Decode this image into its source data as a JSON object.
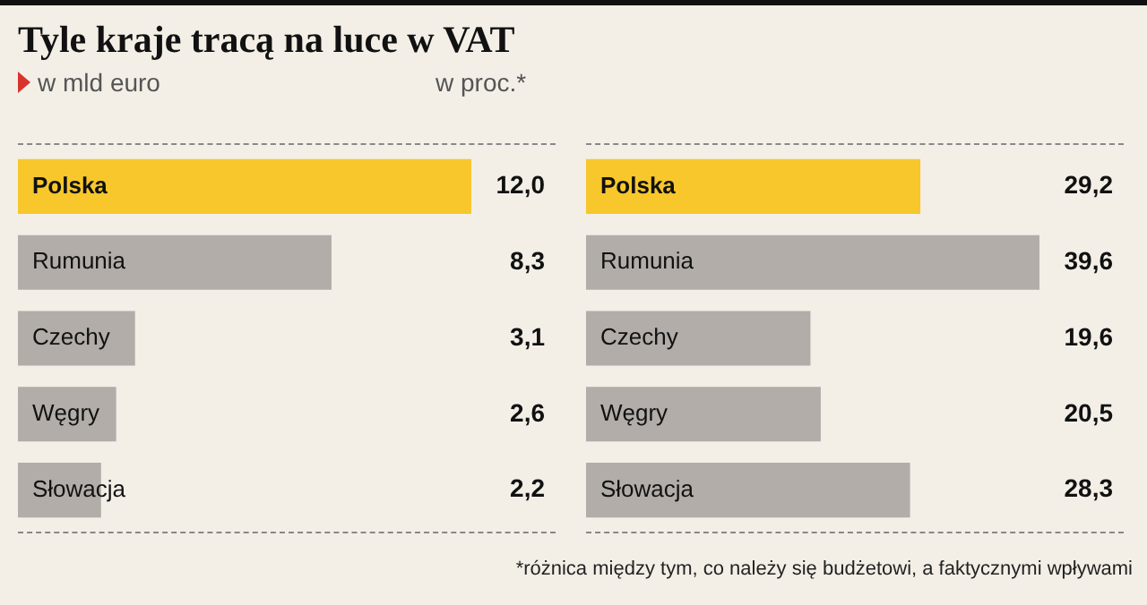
{
  "chart_data": [
    {
      "type": "bar",
      "orientation": "horizontal",
      "title": "Tyle kraje tracą na luce w VAT",
      "subtitle": "w mld euro",
      "categories": [
        "Polska",
        "Rumunia",
        "Czechy",
        "Węgry",
        "Słowacja"
      ],
      "values": [
        12.0,
        8.3,
        3.1,
        2.6,
        2.2
      ],
      "value_labels": [
        "12,0",
        "8,3",
        "3,1",
        "2,6",
        "2,2"
      ],
      "colors": [
        "#f7c72c",
        "#b2ada8",
        "#b2ada8",
        "#b2ada8",
        "#b2ada8"
      ]
    },
    {
      "type": "bar",
      "orientation": "horizontal",
      "subtitle": "w proc.*",
      "categories": [
        "Polska",
        "Rumunia",
        "Czechy",
        "Węgry",
        "Słowacja"
      ],
      "values": [
        29.2,
        39.6,
        19.6,
        20.5,
        28.3
      ],
      "value_labels": [
        "29,2",
        "39,6",
        "19,6",
        "20,5",
        "28,3"
      ],
      "colors": [
        "#f7c72c",
        "#b2ada8",
        "#b2ada8",
        "#b2ada8",
        "#b2ada8"
      ],
      "annotations": [
        "*różnica między tym, co należy się budżetowi, a faktycznymi wpływami"
      ]
    }
  ]
}
